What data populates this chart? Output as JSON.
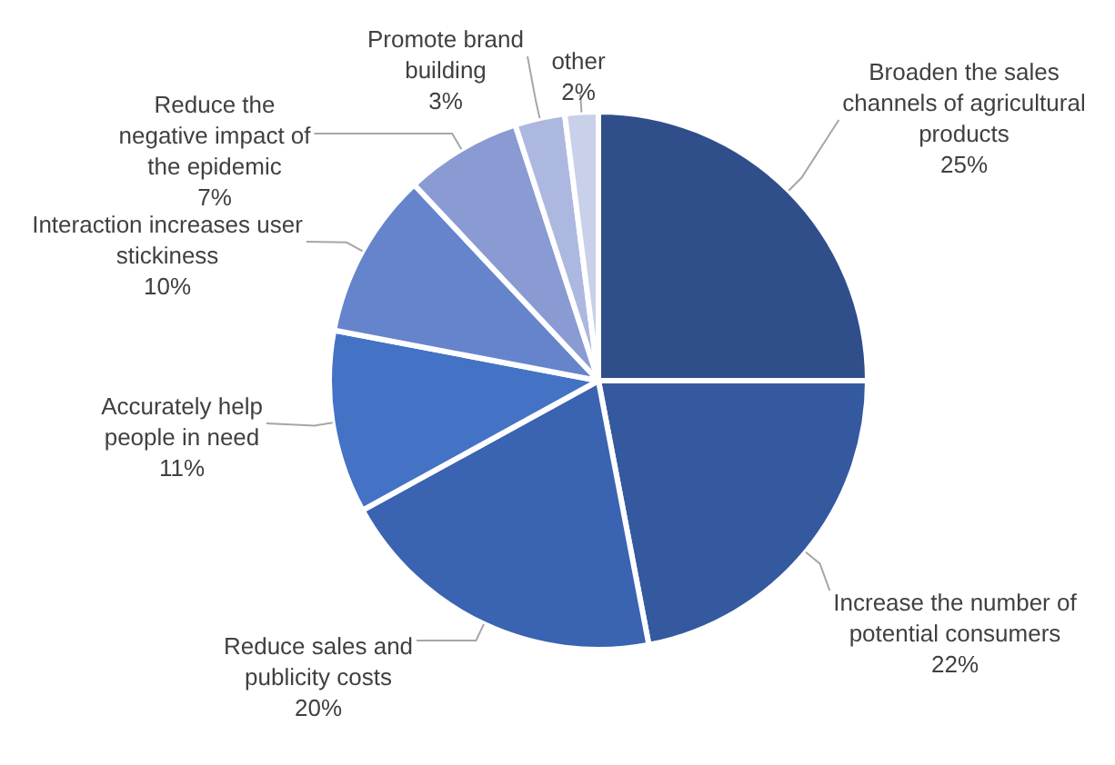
{
  "chart_data": {
    "type": "pie",
    "categories": [
      "Broaden the sales channels of agricultural products",
      "Increase the number of potential consumers",
      "Reduce sales and publicity costs",
      "Accurately help people in need",
      "Interaction increases user stickiness",
      "Reduce the negative impact of the epidemic",
      "Promote brand building",
      "other"
    ],
    "values": [
      25,
      22,
      20,
      11,
      10,
      7,
      3,
      2
    ],
    "value_labels": [
      "25%",
      "22%",
      "20%",
      "11%",
      "10%",
      "7%",
      "3%",
      "2%"
    ],
    "colors": [
      "#2f4e8a",
      "#34599f",
      "#3a63b1",
      "#4472c4",
      "#6684cc",
      "#8a9bd3",
      "#adb8e0",
      "#c8d0ea"
    ],
    "legend": false
  }
}
